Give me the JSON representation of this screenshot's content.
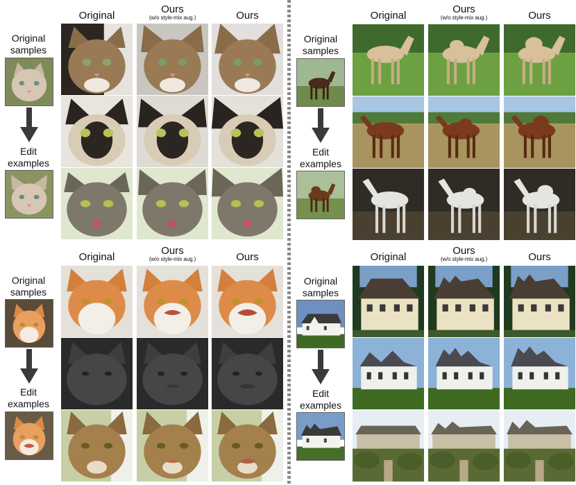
{
  "columns": {
    "original": "Original",
    "ours_no_aug": "Ours",
    "ours_no_aug_note": "(w/o style-mix aug.)",
    "ours": "Ours"
  },
  "side": {
    "original_samples": [
      "Original",
      "samples"
    ],
    "edit_examples": [
      "Edit",
      "examples"
    ]
  },
  "panels": [
    {
      "id": "cat-ears",
      "subject": "cat",
      "edit": "pointed ears"
    },
    {
      "id": "horse-hump",
      "subject": "horse",
      "edit": "back hump"
    },
    {
      "id": "cat-mouth",
      "subject": "cat",
      "edit": "mouth"
    },
    {
      "id": "house-roof",
      "subject": "house",
      "edit": "roof"
    }
  ],
  "colors": {
    "divider": "#8a8a8a",
    "arrow": "#3a3a3a"
  }
}
